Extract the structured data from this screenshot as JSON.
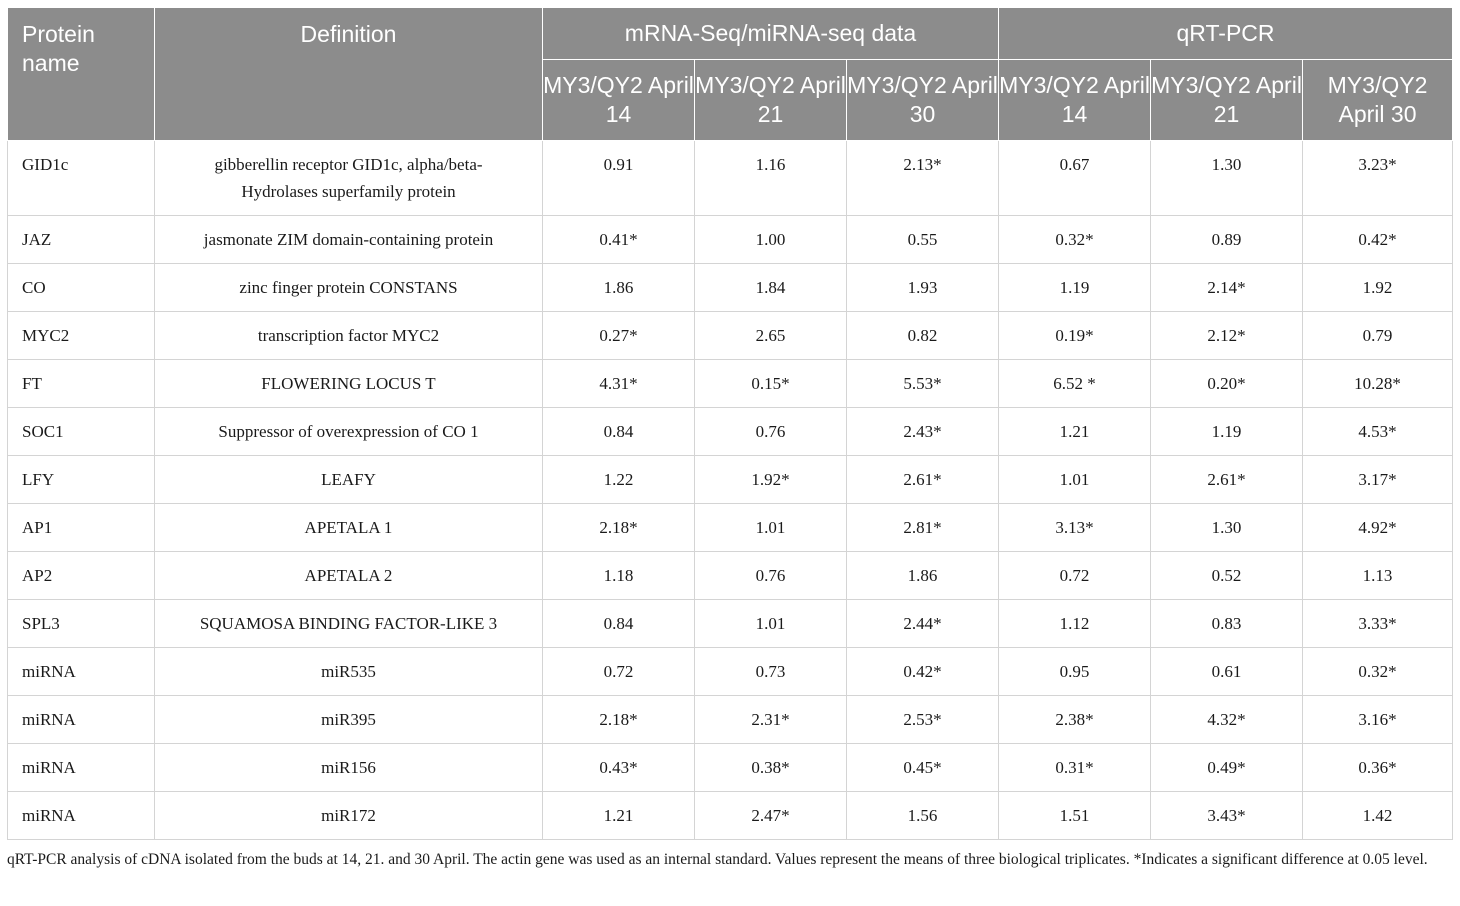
{
  "header": {
    "protein_name": "Protein name",
    "definition": "Definition",
    "group_seq": "mRNA-Seq/miRNA-seq data",
    "group_qpcr": "qRT-PCR",
    "sub": [
      "MY3/QY2 April 14",
      "MY3/QY2 April 21",
      "MY3/QY2 April 30",
      "MY3/QY2 April 14",
      "MY3/QY2 April 21",
      "MY3/QY2 April 30"
    ]
  },
  "rows": [
    {
      "name": "GID1c",
      "definition": "gibberellin receptor GID1c, alpha/beta-Hydrolases superfamily protein",
      "seq": [
        "0.91",
        "1.16",
        "2.13*"
      ],
      "qpcr": [
        "0.67",
        "1.30",
        "3.23*"
      ]
    },
    {
      "name": "JAZ",
      "definition": "jasmonate ZIM domain-containing protein",
      "seq": [
        "0.41*",
        "1.00",
        "0.55"
      ],
      "qpcr": [
        "0.32*",
        "0.89",
        "0.42*"
      ]
    },
    {
      "name": "CO",
      "definition": "zinc finger protein CONSTANS",
      "seq": [
        "1.86",
        "1.84",
        "1.93"
      ],
      "qpcr": [
        "1.19",
        "2.14*",
        "1.92"
      ]
    },
    {
      "name": "MYC2",
      "definition": "transcription factor MYC2",
      "seq": [
        "0.27*",
        "2.65",
        "0.82"
      ],
      "qpcr": [
        "0.19*",
        "2.12*",
        "0.79"
      ]
    },
    {
      "name": "FT",
      "definition": "FLOWERING LOCUS T",
      "seq": [
        "4.31*",
        "0.15*",
        "5.53*"
      ],
      "qpcr": [
        "6.52 *",
        "0.20*",
        "10.28*"
      ]
    },
    {
      "name": "SOC1",
      "definition": "Suppressor of overexpression of CO 1",
      "seq": [
        "0.84",
        "0.76",
        "2.43*"
      ],
      "qpcr": [
        "1.21",
        "1.19",
        "4.53*"
      ]
    },
    {
      "name": "LFY",
      "definition": "LEAFY",
      "seq": [
        "1.22",
        "1.92*",
        "2.61*"
      ],
      "qpcr": [
        "1.01",
        "2.61*",
        "3.17*"
      ]
    },
    {
      "name": "AP1",
      "definition": "APETALA 1",
      "seq": [
        "2.18*",
        "1.01",
        "2.81*"
      ],
      "qpcr": [
        "3.13*",
        "1.30",
        "4.92*"
      ]
    },
    {
      "name": "AP2",
      "definition": "APETALA 2",
      "seq": [
        "1.18",
        "0.76",
        "1.86"
      ],
      "qpcr": [
        "0.72",
        "0.52",
        "1.13"
      ]
    },
    {
      "name": "SPL3",
      "definition": "SQUAMOSA BINDING FACTOR-LIKE 3",
      "seq": [
        "0.84",
        "1.01",
        "2.44*"
      ],
      "qpcr": [
        "1.12",
        "0.83",
        "3.33*"
      ]
    },
    {
      "name": "miRNA",
      "definition": "miR535",
      "seq": [
        "0.72",
        "0.73",
        "0.42*"
      ],
      "qpcr": [
        "0.95",
        "0.61",
        "0.32*"
      ]
    },
    {
      "name": "miRNA",
      "definition": "miR395",
      "seq": [
        "2.18*",
        "2.31*",
        "2.53*"
      ],
      "qpcr": [
        "2.38*",
        "4.32*",
        "3.16*"
      ]
    },
    {
      "name": "miRNA",
      "definition": "miR156",
      "seq": [
        "0.43*",
        "0.38*",
        "0.45*"
      ],
      "qpcr": [
        "0.31*",
        "0.49*",
        "0.36*"
      ]
    },
    {
      "name": "miRNA",
      "definition": "miR172",
      "seq": [
        "1.21",
        "2.47*",
        "1.56"
      ],
      "qpcr": [
        "1.51",
        "3.43*",
        "1.42"
      ]
    }
  ],
  "footnote": "qRT-PCR analysis of cDNA isolated from the buds at 14, 21. and 30 April. The actin gene was used as an internal standard. Values represent the means of three biological triplicates. *Indicates a significant difference at 0.05 level."
}
